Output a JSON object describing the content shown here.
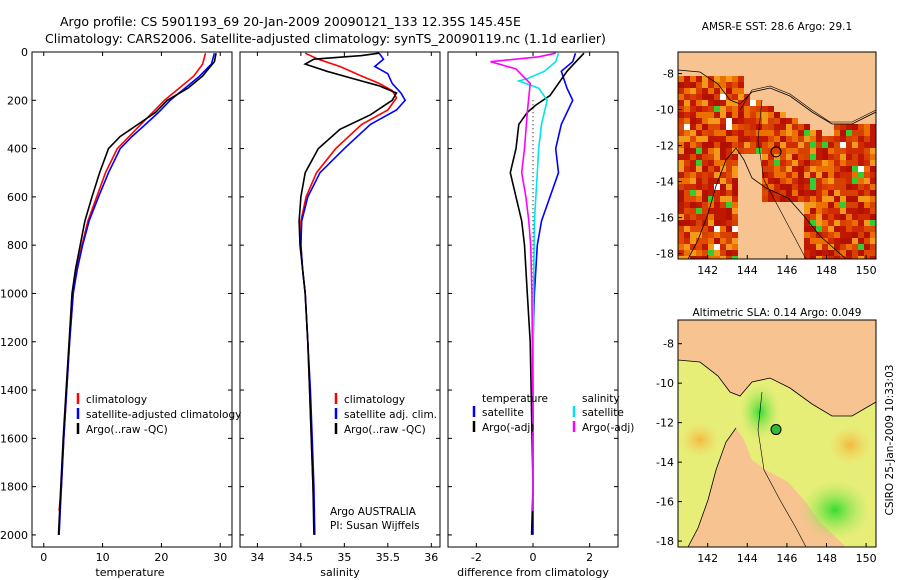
{
  "figure": {
    "title_line1": "Argo profile: CS 5901193_69 20-Jan-2009 20090121_133 12.35S 145.45E",
    "title_line2": "Climatology: CARS2006. Satellite-adjusted climatology: synTS_20090119.nc (1.1d earlier)",
    "footer_label": "CSIRO 25-Jan-2009 10:33:03",
    "argo_label_line1": "Argo AUSTRALIA",
    "argo_label_line2": "PI: Susan Wijffels"
  },
  "colors": {
    "climatology": "#ff0000",
    "satellite": "#0000ff",
    "argo": "#000000",
    "satellite_salinity": "#00e5e5",
    "argo_adj_salinity": "#ff00ff",
    "land": "#f7c391"
  },
  "chart_data": [
    {
      "type": "line",
      "id": "temperature",
      "xlabel": "temperature",
      "ylabel": "",
      "xlim": [
        -2,
        32
      ],
      "ylim": [
        2050,
        0
      ],
      "xticks": [
        0,
        10,
        20,
        30
      ],
      "yticks": [
        0,
        200,
        400,
        600,
        800,
        1000,
        1200,
        1400,
        1600,
        1800,
        2000
      ],
      "legend": [
        "climatology",
        "satellite-adjusted climatology",
        "Argo(..raw -QC)"
      ],
      "series": [
        {
          "name": "climatology",
          "color": "#ff0000",
          "points": [
            [
              27.5,
              5
            ],
            [
              27,
              50
            ],
            [
              25.5,
              100
            ],
            [
              23,
              150
            ],
            [
              20.5,
              200
            ],
            [
              18.5,
              250
            ],
            [
              16.5,
              300
            ],
            [
              14.5,
              350
            ],
            [
              12.5,
              400
            ],
            [
              10.5,
              500
            ],
            [
              9,
              600
            ],
            [
              7.5,
              700
            ],
            [
              6.5,
              800
            ],
            [
              5.6,
              900
            ],
            [
              5,
              1000
            ],
            [
              4.4,
              1200
            ],
            [
              3.9,
              1400
            ],
            [
              3.4,
              1600
            ],
            [
              3,
              1800
            ],
            [
              2.6,
              1900
            ]
          ]
        },
        {
          "name": "satellite-adjusted climatology",
          "color": "#0000ff",
          "points": [
            [
              29,
              5
            ],
            [
              28.5,
              50
            ],
            [
              26.5,
              100
            ],
            [
              24,
              150
            ],
            [
              21.5,
              200
            ],
            [
              19.5,
              250
            ],
            [
              17.3,
              300
            ],
            [
              15,
              350
            ],
            [
              13,
              400
            ],
            [
              11,
              500
            ],
            [
              9.3,
              600
            ],
            [
              7.7,
              700
            ],
            [
              6.6,
              800
            ],
            [
              5.7,
              900
            ],
            [
              5,
              1000
            ],
            [
              4.4,
              1200
            ],
            [
              3.9,
              1400
            ],
            [
              3.4,
              1600
            ],
            [
              3,
              1800
            ],
            [
              2.6,
              2000
            ]
          ]
        },
        {
          "name": "Argo(..raw -QC)",
          "color": "#000000",
          "points": [
            [
              29.3,
              5
            ],
            [
              29,
              40
            ],
            [
              27,
              100
            ],
            [
              24.5,
              150
            ],
            [
              21,
              200
            ],
            [
              19,
              250
            ],
            [
              16,
              300
            ],
            [
              13,
              350
            ],
            [
              11,
              400
            ],
            [
              9.5,
              500
            ],
            [
              8.2,
              600
            ],
            [
              7,
              700
            ],
            [
              6.2,
              800
            ],
            [
              5.4,
              900
            ],
            [
              4.8,
              1000
            ],
            [
              4.3,
              1200
            ],
            [
              3.8,
              1400
            ],
            [
              3.3,
              1600
            ],
            [
              2.9,
              1800
            ],
            [
              2.5,
              2000
            ]
          ]
        }
      ]
    },
    {
      "type": "line",
      "id": "salinity",
      "xlabel": "salinity",
      "xlim": [
        33.8,
        36.1
      ],
      "ylim": [
        2050,
        0
      ],
      "xticks": [
        34,
        34.5,
        35,
        35.5,
        36
      ],
      "legend": [
        "climatology",
        "satellite adj. clim.",
        "Argo(..raw -QC)"
      ],
      "series": [
        {
          "name": "climatology",
          "color": "#ff0000",
          "points": [
            [
              34.55,
              5
            ],
            [
              34.7,
              30
            ],
            [
              34.95,
              60
            ],
            [
              35.2,
              100
            ],
            [
              35.4,
              130
            ],
            [
              35.55,
              160
            ],
            [
              35.6,
              190
            ],
            [
              35.5,
              240
            ],
            [
              35.2,
              300
            ],
            [
              34.9,
              400
            ],
            [
              34.68,
              500
            ],
            [
              34.56,
              600
            ],
            [
              34.5,
              700
            ],
            [
              34.5,
              800
            ],
            [
              34.52,
              900
            ],
            [
              34.55,
              1000
            ],
            [
              34.58,
              1200
            ],
            [
              34.6,
              1400
            ],
            [
              34.62,
              1600
            ],
            [
              34.64,
              1800
            ],
            [
              34.65,
              1900
            ]
          ]
        },
        {
          "name": "satellite adj. clim.",
          "color": "#0000ff",
          "points": [
            [
              35.4,
              5
            ],
            [
              35.45,
              30
            ],
            [
              35.35,
              60
            ],
            [
              35.5,
              90
            ],
            [
              35.55,
              130
            ],
            [
              35.65,
              170
            ],
            [
              35.7,
              200
            ],
            [
              35.6,
              240
            ],
            [
              35.3,
              300
            ],
            [
              35,
              400
            ],
            [
              34.72,
              500
            ],
            [
              34.58,
              600
            ],
            [
              34.51,
              700
            ],
            [
              34.5,
              800
            ],
            [
              34.52,
              900
            ],
            [
              34.55,
              1000
            ],
            [
              34.58,
              1200
            ],
            [
              34.61,
              1400
            ],
            [
              34.63,
              1600
            ],
            [
              34.65,
              1800
            ],
            [
              34.66,
              2000
            ]
          ]
        },
        {
          "name": "Argo(..raw -QC)",
          "color": "#000000",
          "points": [
            [
              35.4,
              5
            ],
            [
              35.2,
              15
            ],
            [
              34.65,
              30
            ],
            [
              34.55,
              50
            ],
            [
              34.8,
              80
            ],
            [
              35.1,
              110
            ],
            [
              35.4,
              140
            ],
            [
              35.6,
              170
            ],
            [
              35.55,
              200
            ],
            [
              35.3,
              260
            ],
            [
              34.95,
              320
            ],
            [
              34.7,
              400
            ],
            [
              34.55,
              500
            ],
            [
              34.5,
              600
            ],
            [
              34.48,
              700
            ],
            [
              34.49,
              800
            ],
            [
              34.52,
              900
            ],
            [
              34.55,
              1000
            ],
            [
              34.58,
              1200
            ],
            [
              34.6,
              1400
            ],
            [
              34.62,
              1600
            ],
            [
              34.64,
              1800
            ],
            [
              34.65,
              2000
            ]
          ]
        }
      ]
    },
    {
      "type": "line",
      "id": "difference",
      "xlabel": "difference from climatology",
      "xlim": [
        -3,
        3
      ],
      "ylim": [
        2050,
        0
      ],
      "xticks": [
        -2,
        0,
        2
      ],
      "legend": [
        "temperature",
        "satellite",
        "Argo(-adj)",
        "salinity",
        "satellite",
        "Argo(-adj)"
      ],
      "series": [
        {
          "name": "temperature satellite",
          "color": "#0000ff",
          "points": [
            [
              1.5,
              5
            ],
            [
              1.4,
              40
            ],
            [
              1.0,
              80
            ],
            [
              1.2,
              150
            ],
            [
              1.4,
              200
            ],
            [
              1.0,
              300
            ],
            [
              0.8,
              400
            ],
            [
              0.9,
              500
            ],
            [
              0.6,
              600
            ],
            [
              0.3,
              700
            ],
            [
              0.15,
              800
            ],
            [
              0.05,
              1000
            ],
            [
              0,
              1200
            ],
            [
              0,
              1600
            ],
            [
              0,
              2000
            ]
          ]
        },
        {
          "name": "temperature Argo(-adj)",
          "color": "#000000",
          "points": [
            [
              1.8,
              5
            ],
            [
              1.6,
              30
            ],
            [
              1.2,
              80
            ],
            [
              0.9,
              130
            ],
            [
              0.6,
              180
            ],
            [
              0.1,
              220
            ],
            [
              -0.2,
              250
            ],
            [
              -0.5,
              300
            ],
            [
              -0.6,
              400
            ],
            [
              -0.8,
              500
            ],
            [
              -0.6,
              600
            ],
            [
              -0.4,
              700
            ],
            [
              -0.3,
              800
            ],
            [
              -0.2,
              1000
            ],
            [
              -0.1,
              1200
            ],
            [
              -0.05,
              1500
            ],
            [
              0,
              1800
            ],
            [
              -0.05,
              2000
            ]
          ]
        },
        {
          "name": "salinity satellite",
          "color": "#00e5e5",
          "points": [
            [
              0.9,
              5
            ],
            [
              0.8,
              40
            ],
            [
              0.4,
              80
            ],
            [
              -0.2,
              110
            ],
            [
              -0.5,
              120
            ],
            [
              0.2,
              150
            ],
            [
              0.5,
              200
            ],
            [
              0.3,
              300
            ],
            [
              0.2,
              400
            ],
            [
              0.15,
              500
            ],
            [
              0.05,
              700
            ],
            [
              0.02,
              1000
            ],
            [
              0,
              1500
            ],
            [
              0,
              1900
            ]
          ]
        },
        {
          "name": "salinity Argo(-adj)",
          "color": "#ff00ff",
          "points": [
            [
              0.8,
              5
            ],
            [
              0.2,
              20
            ],
            [
              -1.5,
              40
            ],
            [
              -0.6,
              70
            ],
            [
              -0.1,
              130
            ],
            [
              -0.2,
              250
            ],
            [
              -0.3,
              400
            ],
            [
              -0.4,
              500
            ],
            [
              -0.25,
              600
            ],
            [
              -0.15,
              700
            ],
            [
              -0.08,
              800
            ],
            [
              -0.04,
              1000
            ],
            [
              0,
              1500
            ],
            [
              0,
              1900
            ]
          ]
        }
      ]
    },
    {
      "type": "heatmap",
      "id": "sst_map",
      "title": "AMSR-E SST: 28.6 Argo: 29.1",
      "xlim": [
        140.5,
        150.5
      ],
      "ylim": [
        -18.3,
        -6.8
      ],
      "xticks": [
        142,
        144,
        146,
        148,
        150
      ],
      "yticks": [
        -8,
        -10,
        -12,
        -14,
        -16,
        -18
      ],
      "marker": {
        "lon": 145.45,
        "lat": -12.35
      }
    },
    {
      "type": "heatmap",
      "id": "sla_map",
      "title": "Altimetric SLA: 0.14 Argo: 0.049",
      "xlim": [
        140.5,
        150.5
      ],
      "ylim": [
        -18.3,
        -6.8
      ],
      "xticks": [
        142,
        144,
        146,
        148,
        150
      ],
      "yticks": [
        -8,
        -10,
        -12,
        -14,
        -16,
        -18
      ],
      "marker": {
        "lon": 145.45,
        "lat": -12.35
      }
    }
  ]
}
